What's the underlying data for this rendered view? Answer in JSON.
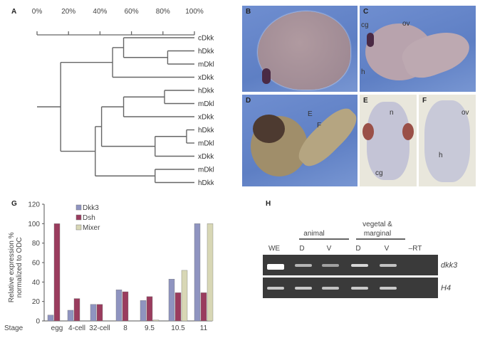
{
  "panels": {
    "A": "A",
    "B": "B",
    "C": "C",
    "D": "D",
    "E": "E",
    "F": "F",
    "G": "G",
    "H": "H"
  },
  "dendrogram": {
    "axis_ticks": [
      "0%",
      "20%",
      "40%",
      "60%",
      "80%",
      "100%"
    ],
    "axis_values": [
      0,
      20,
      40,
      60,
      80,
      100
    ],
    "tree": {
      "sim": 15,
      "children": [
        {
          "sim": 48,
          "children": [
            {
              "sim": 55,
              "children": [
                {
                  "name": "cDkk3"
                },
                {
                  "sim": 83,
                  "children": [
                    {
                      "name": "hDkk3"
                    },
                    {
                      "name": "mDkk3"
                    }
                  ]
                }
              ]
            },
            {
              "name": "xDkk3"
            }
          ]
        },
        {
          "sim": 37,
          "children": [
            {
              "sim": 41,
              "children": [
                {
                  "sim": 55,
                  "children": [
                    {
                      "sim": 81,
                      "children": [
                        {
                          "name": "hDkk1"
                        },
                        {
                          "name": "mDkk1"
                        }
                      ]
                    },
                    {
                      "name": "xDkk1"
                    }
                  ]
                },
                {
                  "sim": 75,
                  "children": [
                    {
                      "sim": 95,
                      "children": [
                        {
                          "name": "hDkk2"
                        },
                        {
                          "name": "mDkk2"
                        }
                      ]
                    },
                    {
                      "name": "xDkk2"
                    }
                  ]
                }
              ]
            },
            {
              "sim": 75,
              "children": [
                {
                  "name": "mDkk4"
                },
                {
                  "name": "hDkk4"
                }
              ]
            }
          ]
        }
      ]
    }
  },
  "photos": {
    "C": {
      "cg": "cg",
      "ov": "ov",
      "h": "h"
    },
    "D": {
      "E": "E",
      "F": "F"
    },
    "E": {
      "n": "n",
      "cg": "cg"
    },
    "F": {
      "ov": "ov",
      "h": "h"
    }
  },
  "chart_data": {
    "type": "bar",
    "title": "",
    "xlabel": "Stage",
    "ylabel": "Relative expression % normalized to ODC",
    "ylabel_lines": [
      "Relative expression %",
      "normalized to ODC"
    ],
    "ylim": [
      0,
      120
    ],
    "yticks": [
      0,
      20,
      40,
      60,
      80,
      100,
      120
    ],
    "categories": [
      "egg",
      "4-cell",
      "32-cell",
      "8",
      "9.5",
      "10.5",
      "11"
    ],
    "series": [
      {
        "name": "Dkk3",
        "color": "#8f94c0",
        "values": [
          6,
          11,
          17,
          32,
          21,
          43,
          100
        ]
      },
      {
        "name": "Dsh",
        "color": "#9a3c5e",
        "values": [
          100,
          23,
          17,
          30,
          25,
          29,
          29
        ]
      },
      {
        "name": "Mixer",
        "color": "#d8d7b5",
        "values": [
          0,
          0,
          0,
          0,
          1,
          52,
          100
        ]
      }
    ],
    "legend": "top-left",
    "grid": false
  },
  "gel": {
    "group_animal": "animal",
    "group_vegetal_1": "vegetal &",
    "group_vegetal_2": "marginal",
    "lanes": [
      "WE",
      "D",
      "V",
      "D",
      "V",
      "–RT"
    ],
    "rows": [
      {
        "label": "dkk3",
        "intensities": [
          1.0,
          0.45,
          0.3,
          0.7,
          0.55,
          0
        ]
      },
      {
        "label": "H4",
        "intensities": [
          0.6,
          0.6,
          0.55,
          0.6,
          0.6,
          0
        ]
      }
    ]
  }
}
